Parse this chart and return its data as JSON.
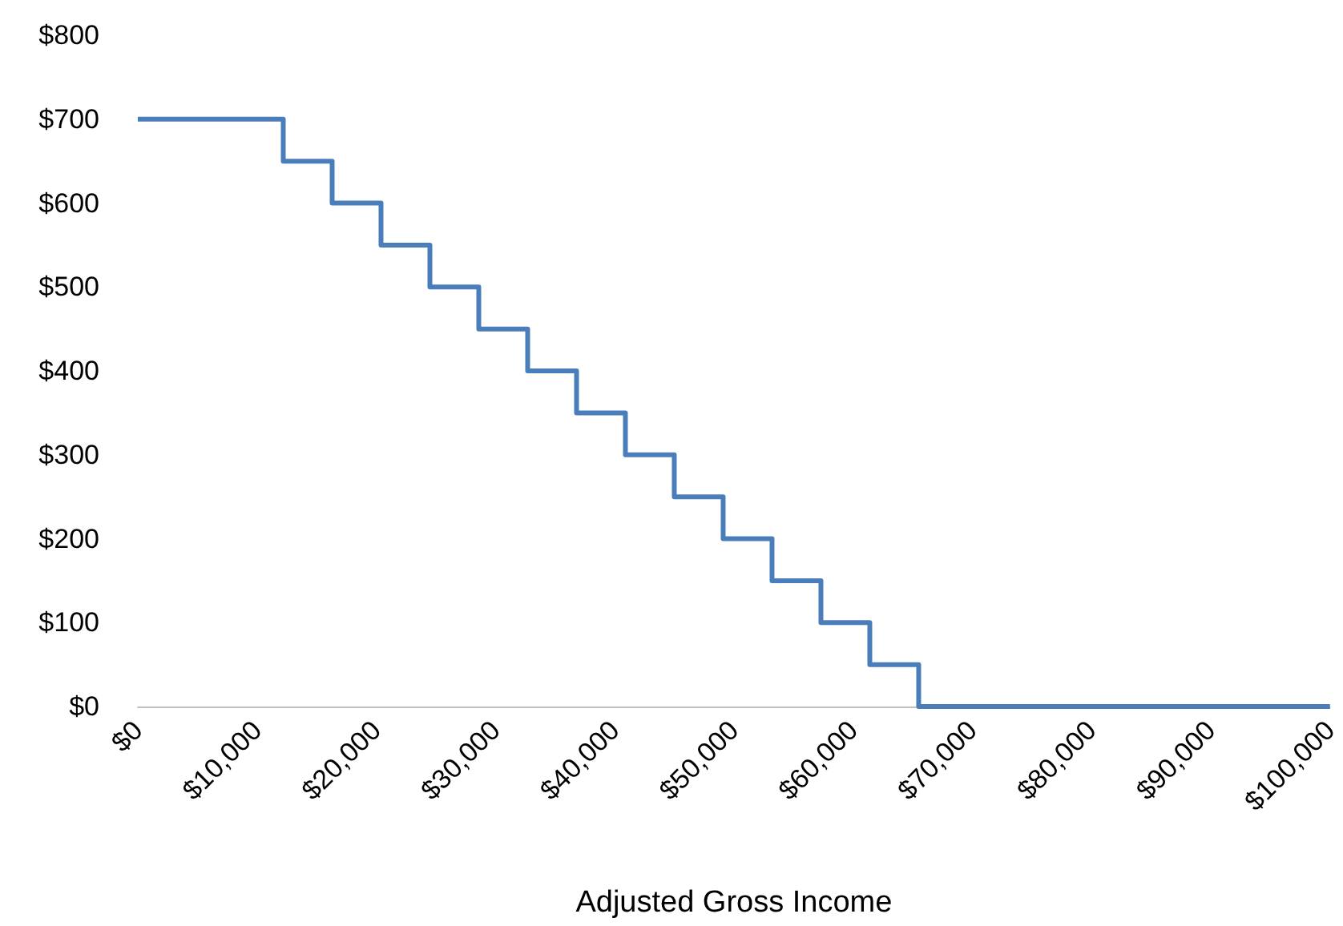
{
  "chart_data": {
    "type": "step",
    "xlabel": "Adjusted Gross Income",
    "x": [
      0,
      12200,
      16300,
      20400,
      24500,
      28600,
      32700,
      36800,
      40900,
      45000,
      49100,
      53200,
      57300,
      61400,
      65500,
      100000
    ],
    "values": [
      700,
      650,
      600,
      550,
      500,
      450,
      400,
      350,
      300,
      250,
      200,
      150,
      100,
      50,
      0,
      0
    ],
    "color": "#4a7ebb",
    "xlim": [
      0,
      100000
    ],
    "xticks": [
      {
        "value": 0,
        "label": "$0"
      },
      {
        "value": 10000,
        "label": "$10,000"
      },
      {
        "value": 20000,
        "label": "$20,000"
      },
      {
        "value": 30000,
        "label": "$30,000"
      },
      {
        "value": 40000,
        "label": "$40,000"
      },
      {
        "value": 50000,
        "label": "$50,000"
      },
      {
        "value": 60000,
        "label": "$60,000"
      },
      {
        "value": 70000,
        "label": "$70,000"
      },
      {
        "value": 80000,
        "label": "$80,000"
      },
      {
        "value": 90000,
        "label": "$90,000"
      },
      {
        "value": 100000,
        "label": "$100,000"
      }
    ],
    "ylim": [
      0,
      800
    ],
    "yticks": [
      {
        "value": 0,
        "label": "$0"
      },
      {
        "value": 100,
        "label": "$100"
      },
      {
        "value": 200,
        "label": "$200"
      },
      {
        "value": 300,
        "label": "$300"
      },
      {
        "value": 400,
        "label": "$400"
      },
      {
        "value": 500,
        "label": "$500"
      },
      {
        "value": 600,
        "label": "$600"
      },
      {
        "value": 700,
        "label": "$700"
      },
      {
        "value": 800,
        "label": "$800"
      }
    ],
    "grid": false,
    "marker": "none",
    "line_style": "solid"
  }
}
